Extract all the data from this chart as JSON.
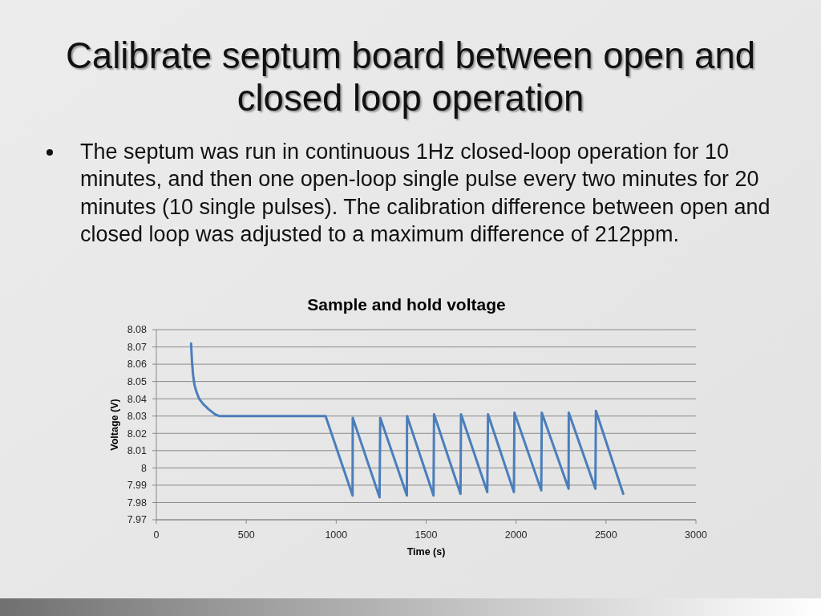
{
  "chart_data": {
    "type": "line",
    "title": "Calibrate septum board between open and closed loop operation",
    "subtitle": "Sample and hold voltage",
    "annotations": [
      "The septum was run in continuous 1Hz closed-loop operation for 10 minutes, and then one open-loop single pulse every two minutes for 20 minutes (10 single pulses). The calibration difference between open and closed loop was adjusted to a maximum difference of 212ppm."
    ],
    "xlabel": "Time (s)",
    "ylabel": "Voltage (V)",
    "x": [
      193,
      198,
      204,
      212,
      223,
      238,
      260,
      290,
      327,
      349,
      400,
      500,
      600,
      700,
      800,
      900,
      941,
      1091,
      1092,
      1241,
      1245,
      1393,
      1394,
      1541,
      1544,
      1691,
      1694,
      1840,
      1844,
      1988,
      1991,
      2140,
      2143,
      2292,
      2293,
      2441,
      2444,
      2596
    ],
    "series": [
      {
        "color": "#4a7ebb",
        "values": [
          8.072,
          8.062,
          8.054,
          8.048,
          8.044,
          8.04,
          8.037,
          8.034,
          8.031,
          8.03,
          8.03,
          8.03,
          8.03,
          8.03,
          8.03,
          8.03,
          8.03,
          7.984,
          8.029,
          7.983,
          8.029,
          7.984,
          8.03,
          7.984,
          8.031,
          7.985,
          8.031,
          7.986,
          8.031,
          7.986,
          8.032,
          7.987,
          8.032,
          7.988,
          8.032,
          7.988,
          8.033,
          7.985
        ]
      }
    ],
    "xlim": [
      0,
      3000
    ],
    "xticks": [
      0,
      500,
      1000,
      1500,
      2000,
      2500,
      3000
    ],
    "ylim": [
      7.97,
      8.08
    ],
    "yticks": [
      7.97,
      7.98,
      7.99,
      8,
      8.01,
      8.02,
      8.03,
      8.04,
      8.05,
      8.06,
      8.07,
      8.08
    ],
    "grid": "y",
    "marker": "none",
    "line_style": "solid"
  }
}
